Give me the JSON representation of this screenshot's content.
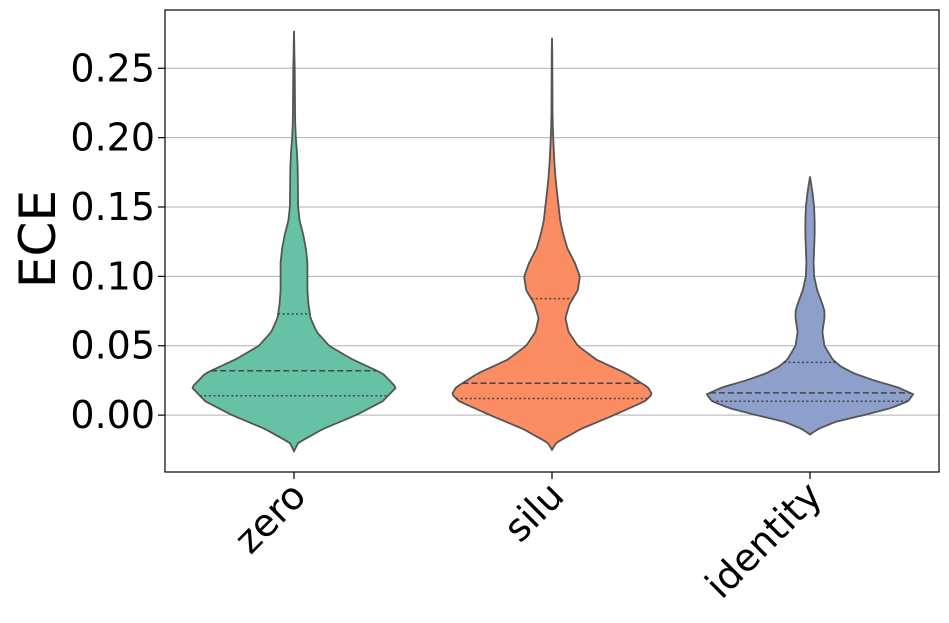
{
  "chart_data": {
    "type": "violin",
    "title": "",
    "xlabel": "",
    "ylabel": "ECE",
    "ylim": [
      -0.041,
      0.292
    ],
    "yticks": [
      "0.00",
      "0.05",
      "0.10",
      "0.15",
      "0.20",
      "0.25"
    ],
    "ytick_values": [
      0.0,
      0.05,
      0.1,
      0.15,
      0.2,
      0.25
    ],
    "grid": "horizontal",
    "categories": [
      "zero",
      "silu",
      "identity"
    ],
    "colors": [
      "#66c2a5",
      "#fc8d62",
      "#8da0cb"
    ],
    "series": [
      {
        "category": "zero",
        "min": -0.026,
        "max": 0.277,
        "q1": 0.014,
        "median": 0.032,
        "q3": 0.073,
        "density": [
          [
            -0.026,
            0.0
          ],
          [
            -0.02,
            0.04
          ],
          [
            -0.01,
            0.28
          ],
          [
            0.0,
            0.6
          ],
          [
            0.01,
            0.86
          ],
          [
            0.02,
            0.99
          ],
          [
            0.03,
            0.86
          ],
          [
            0.04,
            0.57
          ],
          [
            0.05,
            0.34
          ],
          [
            0.06,
            0.22
          ],
          [
            0.07,
            0.16
          ],
          [
            0.08,
            0.14
          ],
          [
            0.09,
            0.13
          ],
          [
            0.1,
            0.13
          ],
          [
            0.11,
            0.13
          ],
          [
            0.12,
            0.115
          ],
          [
            0.13,
            0.09
          ],
          [
            0.14,
            0.055
          ],
          [
            0.15,
            0.04
          ],
          [
            0.16,
            0.038
          ],
          [
            0.17,
            0.037
          ],
          [
            0.18,
            0.035
          ],
          [
            0.19,
            0.028
          ],
          [
            0.2,
            0.018
          ],
          [
            0.21,
            0.012
          ],
          [
            0.22,
            0.01
          ],
          [
            0.23,
            0.009
          ],
          [
            0.24,
            0.008
          ],
          [
            0.25,
            0.007
          ],
          [
            0.26,
            0.004
          ],
          [
            0.27,
            0.002
          ],
          [
            0.277,
            0.0
          ]
        ]
      },
      {
        "category": "silu",
        "min": -0.025,
        "max": 0.272,
        "q1": 0.012,
        "median": 0.023,
        "q3": 0.084,
        "density": [
          [
            -0.025,
            0.0
          ],
          [
            -0.02,
            0.04
          ],
          [
            -0.01,
            0.28
          ],
          [
            0.0,
            0.6
          ],
          [
            0.01,
            0.9
          ],
          [
            0.015,
            0.97
          ],
          [
            0.02,
            0.93
          ],
          [
            0.03,
            0.72
          ],
          [
            0.04,
            0.43
          ],
          [
            0.05,
            0.25
          ],
          [
            0.06,
            0.16
          ],
          [
            0.07,
            0.13
          ],
          [
            0.08,
            0.17
          ],
          [
            0.09,
            0.25
          ],
          [
            0.1,
            0.27
          ],
          [
            0.11,
            0.22
          ],
          [
            0.12,
            0.15
          ],
          [
            0.13,
            0.11
          ],
          [
            0.14,
            0.08
          ],
          [
            0.15,
            0.065
          ],
          [
            0.16,
            0.05
          ],
          [
            0.17,
            0.035
          ],
          [
            0.18,
            0.025
          ],
          [
            0.19,
            0.018
          ],
          [
            0.2,
            0.012
          ],
          [
            0.21,
            0.007
          ],
          [
            0.22,
            0.005
          ],
          [
            0.24,
            0.004
          ],
          [
            0.26,
            0.003
          ],
          [
            0.272,
            0.0
          ]
        ]
      },
      {
        "category": "identity",
        "min": -0.014,
        "max": 0.172,
        "q1": 0.01,
        "median": 0.016,
        "q3": 0.038,
        "density": [
          [
            -0.014,
            0.0
          ],
          [
            -0.01,
            0.08
          ],
          [
            -0.005,
            0.24
          ],
          [
            0.0,
            0.52
          ],
          [
            0.005,
            0.78
          ],
          [
            0.01,
            0.95
          ],
          [
            0.015,
            1.0
          ],
          [
            0.02,
            0.85
          ],
          [
            0.025,
            0.62
          ],
          [
            0.03,
            0.43
          ],
          [
            0.035,
            0.3
          ],
          [
            0.04,
            0.22
          ],
          [
            0.05,
            0.14
          ],
          [
            0.06,
            0.12
          ],
          [
            0.07,
            0.14
          ],
          [
            0.075,
            0.14
          ],
          [
            0.08,
            0.12
          ],
          [
            0.09,
            0.07
          ],
          [
            0.1,
            0.04
          ],
          [
            0.11,
            0.035
          ],
          [
            0.12,
            0.04
          ],
          [
            0.13,
            0.045
          ],
          [
            0.14,
            0.045
          ],
          [
            0.15,
            0.04
          ],
          [
            0.16,
            0.025
          ],
          [
            0.172,
            0.0
          ]
        ]
      }
    ]
  }
}
